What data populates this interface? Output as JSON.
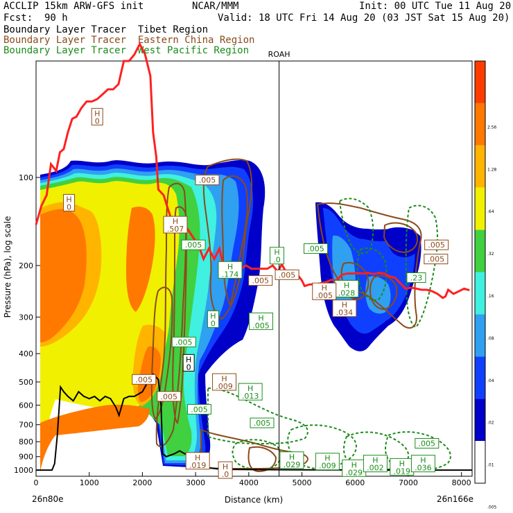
{
  "header": {
    "model": "ACCLIP 15km ARW-GFS init",
    "org": "NCAR/MMM",
    "init": "Init: 00 UTC Tue 11 Aug 20",
    "fcst_label": "Fcst:",
    "fcst_value": "90 h",
    "valid": "Valid: 18 UTC Fri 14 Aug 20 (03 JST Sat 15 Aug 20)",
    "tracers": [
      {
        "text": "Boundary Layer Tracer  Tibet Region",
        "color": "#000000"
      },
      {
        "text": "Boundary Layer Tracer  Eastern China Region",
        "color": "#8b4a1a"
      },
      {
        "text": "Boundary Layer Tracer  West Pacific Region",
        "color": "#1a8c1a"
      }
    ],
    "marker": "ROAH"
  },
  "chart_data": {
    "type": "heatmap",
    "ylabel": "Pressure (hPa), log scale",
    "xlabel": "Distance (km)",
    "y_scale": "log",
    "xlim": [
      0,
      8200
    ],
    "ylim": [
      1050,
      40
    ],
    "x_ticks": [
      0,
      1000,
      2000,
      3000,
      4000,
      5000,
      6000,
      7000,
      8000
    ],
    "y_ticks": [
      100,
      200,
      300,
      400,
      500,
      600,
      700,
      800,
      900,
      1000
    ],
    "x_start_label": "26n80e",
    "x_end_label": "26n166e",
    "marker_x": 4570,
    "colorbar": {
      "levels": [
        "",
        "2.56",
        "1.28",
        ".64",
        ".32",
        ".16",
        ".08",
        ".04",
        ".02",
        ".01",
        ".005"
      ],
      "colors": [
        "#ff3c00",
        "#ff7800",
        "#ffb400",
        "#f0f000",
        "#40d040",
        "#40f0e0",
        "#30a0f0",
        "#1040ff",
        "#0000c8",
        "#ffffff"
      ]
    },
    "tropopause": [
      [
        0,
        145
      ],
      [
        100,
        125
      ],
      [
        200,
        115
      ],
      [
        280,
        90
      ],
      [
        380,
        95
      ],
      [
        450,
        82
      ],
      [
        520,
        80
      ],
      [
        600,
        70
      ],
      [
        680,
        63
      ],
      [
        760,
        62
      ],
      [
        850,
        58
      ],
      [
        950,
        55
      ],
      [
        1050,
        55
      ],
      [
        1150,
        54
      ],
      [
        1250,
        52
      ],
      [
        1350,
        50
      ],
      [
        1450,
        50
      ],
      [
        1550,
        48
      ],
      [
        1650,
        40
      ],
      [
        1750,
        40
      ],
      [
        1850,
        38
      ],
      [
        1950,
        35
      ],
      [
        2050,
        38
      ],
      [
        2150,
        45
      ],
      [
        2200,
        70
      ],
      [
        2260,
        85
      ],
      [
        2300,
        110
      ],
      [
        2400,
        115
      ],
      [
        2480,
        128
      ],
      [
        2550,
        140
      ],
      [
        2650,
        140
      ],
      [
        2750,
        145
      ],
      [
        2850,
        150
      ],
      [
        2950,
        160
      ],
      [
        3050,
        170
      ],
      [
        3150,
        190
      ],
      [
        3250,
        175
      ],
      [
        3350,
        190
      ],
      [
        3450,
        175
      ],
      [
        3550,
        210
      ],
      [
        3650,
        200
      ],
      [
        3750,
        200
      ],
      [
        3850,
        205
      ],
      [
        3950,
        200
      ],
      [
        4050,
        205
      ],
      [
        4150,
        205
      ],
      [
        4250,
        205
      ],
      [
        4350,
        205
      ],
      [
        4450,
        200
      ],
      [
        4550,
        210
      ],
      [
        4620,
        198
      ],
      [
        4700,
        210
      ],
      [
        4800,
        210
      ],
      [
        4900,
        213
      ],
      [
        5000,
        225
      ],
      [
        5050,
        235
      ],
      [
        5150,
        232
      ],
      [
        5250,
        232
      ],
      [
        5350,
        230
      ],
      [
        5450,
        228
      ],
      [
        5550,
        224
      ],
      [
        5650,
        225
      ],
      [
        5750,
        215
      ],
      [
        5850,
        213
      ],
      [
        5950,
        213
      ],
      [
        6050,
        212
      ],
      [
        6150,
        213
      ],
      [
        6250,
        212
      ],
      [
        6350,
        214
      ],
      [
        6450,
        212
      ],
      [
        6550,
        213
      ],
      [
        6650,
        218
      ],
      [
        6750,
        220
      ],
      [
        6850,
        230
      ],
      [
        6950,
        240
      ],
      [
        7050,
        238
      ],
      [
        7150,
        240
      ],
      [
        7250,
        242
      ],
      [
        7350,
        242
      ],
      [
        7450,
        245
      ],
      [
        7550,
        250
      ],
      [
        7650,
        258
      ],
      [
        7700,
        255
      ],
      [
        7750,
        242
      ],
      [
        7850,
        250
      ],
      [
        7950,
        245
      ],
      [
        8050,
        240
      ],
      [
        8150,
        243
      ]
    ],
    "terrain": [
      [
        0,
        1000
      ],
      [
        300,
        1000
      ],
      [
        350,
        950
      ],
      [
        400,
        760
      ],
      [
        460,
        520
      ],
      [
        520,
        540
      ],
      [
        600,
        560
      ],
      [
        700,
        580
      ],
      [
        800,
        540
      ],
      [
        900,
        560
      ],
      [
        1000,
        570
      ],
      [
        1100,
        560
      ],
      [
        1200,
        580
      ],
      [
        1300,
        560
      ],
      [
        1400,
        570
      ],
      [
        1500,
        610
      ],
      [
        1560,
        650
      ],
      [
        1650,
        570
      ],
      [
        1750,
        560
      ],
      [
        1850,
        560
      ],
      [
        2000,
        540
      ],
      [
        2100,
        500
      ],
      [
        2200,
        470
      ],
      [
        2300,
        490
      ],
      [
        2350,
        600
      ],
      [
        2380,
        880
      ],
      [
        2450,
        900
      ],
      [
        2600,
        880
      ],
      [
        2700,
        860
      ],
      [
        2800,
        880
      ],
      [
        2900,
        900
      ],
      [
        3000,
        960
      ],
      [
        3200,
        980
      ],
      [
        3400,
        990
      ],
      [
        3700,
        995
      ],
      [
        4200,
        997
      ],
      [
        5000,
        998
      ],
      [
        6000,
        999
      ],
      [
        7000,
        1000
      ],
      [
        8000,
        1000
      ],
      [
        8200,
        1000
      ]
    ],
    "labels": [
      {
        "text": "H",
        "sub": "0",
        "x": 1150,
        "p": 62,
        "color": "#8b4a1a"
      },
      {
        "text": "H",
        "sub": "0",
        "x": 620,
        "p": 122,
        "color": "#8b4a1a"
      },
      {
        "text": "H",
        "sub": ".507",
        "x": 2620,
        "p": 145,
        "color": "#8b4a1a"
      },
      {
        "text": ".005",
        "sub": "",
        "x": 3220,
        "p": 102,
        "color": "#8b4a1a"
      },
      {
        "text": ".005",
        "sub": "",
        "x": 2960,
        "p": 170,
        "color": "#1a8c1a"
      },
      {
        "text": "H",
        "sub": ".174",
        "x": 3650,
        "p": 207,
        "color": "#1a8c1a"
      },
      {
        "text": ".005",
        "sub": "",
        "x": 4220,
        "p": 225,
        "color": "#8b4a1a"
      },
      {
        "text": "H",
        "sub": "0",
        "x": 3330,
        "p": 305,
        "color": "#1a8c1a"
      },
      {
        "text": "H",
        "sub": ".005",
        "x": 4230,
        "p": 310,
        "color": "#1a8c1a"
      },
      {
        "text": ".005",
        "sub": "",
        "x": 2780,
        "p": 365,
        "color": "#1a8c1a"
      },
      {
        "text": "H",
        "sub": "0",
        "x": 2870,
        "p": 430,
        "color": "#000000"
      },
      {
        "text": ".005",
        "sub": "",
        "x": 2030,
        "p": 490,
        "color": "#8b4a1a"
      },
      {
        "text": ".005",
        "sub": "",
        "x": 2500,
        "p": 560,
        "color": "#8b4a1a"
      },
      {
        "text": "H",
        "sub": ".009",
        "x": 3540,
        "p": 500,
        "color": "#8b4a1a"
      },
      {
        "text": "H",
        "sub": ".013",
        "x": 4030,
        "p": 540,
        "color": "#1a8c1a"
      },
      {
        "text": ".005",
        "sub": "",
        "x": 3070,
        "p": 620,
        "color": "#1a8c1a"
      },
      {
        "text": ".005",
        "sub": "",
        "x": 4250,
        "p": 690,
        "color": "#1a8c1a"
      },
      {
        "text": ".005",
        "sub": "",
        "x": 5260,
        "p": 175,
        "color": "#1a8c1a"
      },
      {
        "text": "H",
        "sub": ".0",
        "x": 4530,
        "p": 185,
        "color": "#1a8c1a"
      },
      {
        "text": ".005",
        "sub": "",
        "x": 4720,
        "p": 215,
        "color": "#8b4a1a"
      },
      {
        "text": "H",
        "sub": ".028",
        "x": 5840,
        "p": 240,
        "color": "#1a8c1a"
      },
      {
        "text": "H",
        "sub": ".005",
        "x": 5420,
        "p": 245,
        "color": "#8b4a1a"
      },
      {
        "text": "H",
        "sub": ".034",
        "x": 5800,
        "p": 280,
        "color": "#8b4a1a"
      },
      {
        "text": ".005",
        "sub": "",
        "x": 7530,
        "p": 170,
        "color": "#8b4a1a"
      },
      {
        "text": ".005",
        "sub": "",
        "x": 7520,
        "p": 190,
        "color": "#8b4a1a"
      },
      {
        "text": ".23",
        "sub": "",
        "x": 7150,
        "p": 220,
        "color": "#1a8c1a"
      },
      {
        "text": "H",
        "sub": ".019",
        "x": 3040,
        "p": 930,
        "color": "#8b4a1a"
      },
      {
        "text": "H",
        "sub": ".0",
        "x": 3560,
        "p": 1000,
        "color": "#8b4a1a"
      },
      {
        "text": "H",
        "sub": ".029",
        "x": 4810,
        "p": 925,
        "color": "#1a8c1a"
      },
      {
        "text": "H",
        "sub": ".009",
        "x": 5480,
        "p": 935,
        "color": "#1a8c1a"
      },
      {
        "text": "H",
        "sub": ".029",
        "x": 5980,
        "p": 985,
        "color": "#1a8c1a"
      },
      {
        "text": "H",
        "sub": ".002",
        "x": 6380,
        "p": 950,
        "color": "#1a8c1a"
      },
      {
        "text": "H",
        "sub": ".019",
        "x": 6880,
        "p": 975,
        "color": "#1a8c1a"
      },
      {
        "text": "H",
        "sub": ".036",
        "x": 7280,
        "p": 950,
        "color": "#1a8c1a"
      },
      {
        "text": ".005",
        "sub": "",
        "x": 7350,
        "p": 810,
        "color": "#1a8c1a"
      }
    ]
  }
}
